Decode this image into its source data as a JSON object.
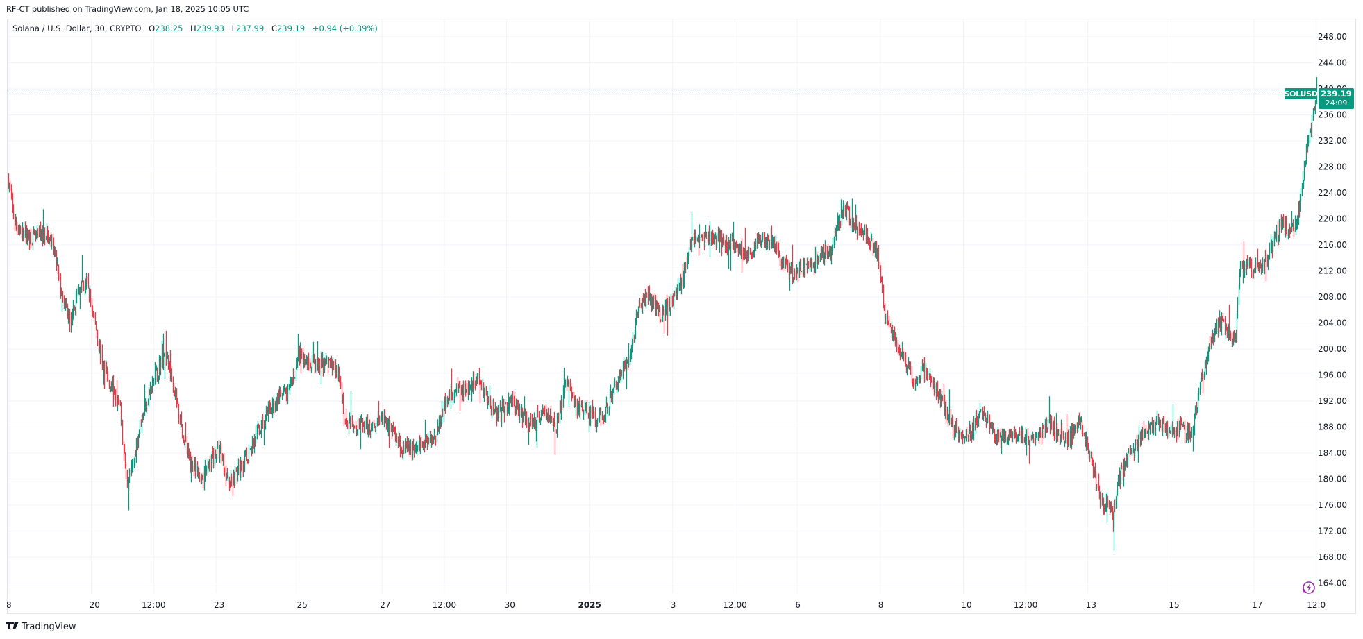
{
  "header": {
    "published": "RF-CT published on TradingView.com, Jan 18, 2025 10:05 UTC"
  },
  "legend": {
    "symbol_desc": "Solana / U.S. Dollar, 30, CRYPTO",
    "open_label": "O",
    "open": "238.25",
    "high_label": "H",
    "high": "239.93",
    "low_label": "L",
    "low": "237.99",
    "close_label": "C",
    "close": "239.19",
    "change": "+0.94 (+0.39%)"
  },
  "price_tag": {
    "symbol": "SOLUSD",
    "price": "239.19",
    "countdown": "24:09"
  },
  "footer": {
    "brand": "TradingView",
    "brand_mark": "TV"
  },
  "colors": {
    "up": "#089981",
    "down": "#f23645",
    "grid": "#f0f3fa",
    "border": "#e0e3eb",
    "accent_purple": "#9c27b0"
  },
  "chart_data": {
    "type": "candlestick",
    "title": "Solana / U.S. Dollar, 30, CRYPTO",
    "symbol": "SOLUSD",
    "interval": "30",
    "xlabel": "",
    "ylabel": "",
    "ylim": [
      161,
      250
    ],
    "y_ticks": [
      248,
      244,
      240,
      236,
      232,
      228,
      224,
      220,
      216,
      212,
      208,
      204,
      200,
      196,
      192,
      188,
      184,
      180,
      176,
      172,
      168,
      164
    ],
    "y_tick_labels": [
      "248.00",
      "244.00",
      "240.00",
      "236.00",
      "232.00",
      "228.00",
      "224.00",
      "220.00",
      "216.00",
      "212.00",
      "208.00",
      "204.00",
      "200.00",
      "196.00",
      "192.00",
      "188.00",
      "184.00",
      "180.00",
      "176.00",
      "172.00",
      "168.00",
      "164.00"
    ],
    "x_ticks": [
      {
        "label": "8",
        "day": 0
      },
      {
        "label": "20",
        "day": 2
      },
      {
        "label": "12:00",
        "day": 3.5
      },
      {
        "label": "23",
        "day": 5
      },
      {
        "label": "25",
        "day": 7
      },
      {
        "label": "27",
        "day": 9
      },
      {
        "label": "12:00",
        "day": 10.5
      },
      {
        "label": "30",
        "day": 12
      },
      {
        "label": "2025",
        "day": 14,
        "bold": true
      },
      {
        "label": "3",
        "day": 16
      },
      {
        "label": "12:00",
        "day": 17.5
      },
      {
        "label": "6",
        "day": 19
      },
      {
        "label": "8",
        "day": 21
      },
      {
        "label": "10",
        "day": 23
      },
      {
        "label": "12:00",
        "day": 24.5
      },
      {
        "label": "13",
        "day": 26
      },
      {
        "label": "15",
        "day": 28
      },
      {
        "label": "17",
        "day": 30
      },
      {
        "label": "12:0",
        "day": 31.5
      }
    ],
    "last": {
      "open": 238.25,
      "high": 239.93,
      "low": 237.99,
      "close": 239.19,
      "change": 0.94,
      "change_pct": 0.39
    },
    "price_path": [
      [
        0.0,
        226.0
      ],
      [
        0.15,
        219.5
      ],
      [
        0.3,
        218.0
      ],
      [
        0.6,
        217.0
      ],
      [
        0.9,
        218.0
      ],
      [
        1.1,
        215.0
      ],
      [
        1.3,
        207.5
      ],
      [
        1.5,
        204.0
      ],
      [
        1.7,
        209.5
      ],
      [
        1.9,
        210.0
      ],
      [
        2.05,
        205.0
      ],
      [
        2.25,
        198.0
      ],
      [
        2.4,
        195.0
      ],
      [
        2.55,
        194.0
      ],
      [
        2.7,
        190.0
      ],
      [
        2.85,
        179.0
      ],
      [
        3.0,
        182.0
      ],
      [
        3.15,
        188.0
      ],
      [
        3.35,
        192.5
      ],
      [
        3.55,
        196.0
      ],
      [
        3.75,
        199.5
      ],
      [
        3.95,
        195.5
      ],
      [
        4.1,
        190.0
      ],
      [
        4.3,
        184.0
      ],
      [
        4.5,
        181.0
      ],
      [
        4.7,
        180.0
      ],
      [
        4.9,
        183.5
      ],
      [
        5.1,
        184.5
      ],
      [
        5.3,
        179.5
      ],
      [
        5.5,
        181.0
      ],
      [
        5.75,
        183.5
      ],
      [
        6.0,
        187.0
      ],
      [
        6.25,
        190.0
      ],
      [
        6.5,
        192.5
      ],
      [
        6.75,
        193.0
      ],
      [
        7.0,
        199.0
      ],
      [
        7.2,
        198.0
      ],
      [
        7.45,
        197.5
      ],
      [
        7.7,
        198.0
      ],
      [
        7.95,
        196.0
      ],
      [
        8.1,
        189.0
      ],
      [
        8.4,
        188.5
      ],
      [
        8.7,
        188.0
      ],
      [
        9.0,
        189.5
      ],
      [
        9.2,
        188.0
      ],
      [
        9.45,
        185.0
      ],
      [
        9.7,
        184.5
      ],
      [
        10.0,
        185.5
      ],
      [
        10.3,
        187.0
      ],
      [
        10.55,
        192.5
      ],
      [
        10.8,
        193.5
      ],
      [
        11.05,
        194.0
      ],
      [
        11.3,
        195.5
      ],
      [
        11.6,
        191.5
      ],
      [
        11.85,
        190.0
      ],
      [
        12.1,
        192.5
      ],
      [
        12.35,
        190.0
      ],
      [
        12.55,
        188.5
      ],
      [
        12.8,
        190.0
      ],
      [
        13.0,
        190.5
      ],
      [
        13.2,
        188.0
      ],
      [
        13.45,
        195.5
      ],
      [
        13.65,
        191.0
      ],
      [
        13.9,
        190.5
      ],
      [
        14.1,
        189.0
      ],
      [
        14.35,
        190.0
      ],
      [
        14.6,
        194.5
      ],
      [
        14.8,
        197.0
      ],
      [
        15.0,
        200.0
      ],
      [
        15.2,
        207.0
      ],
      [
        15.45,
        207.5
      ],
      [
        15.7,
        205.5
      ],
      [
        15.95,
        207.0
      ],
      [
        16.2,
        210.0
      ],
      [
        16.45,
        217.0
      ],
      [
        16.7,
        217.0
      ],
      [
        16.95,
        217.5
      ],
      [
        17.2,
        216.5
      ],
      [
        17.5,
        216.0
      ],
      [
        17.8,
        214.5
      ],
      [
        18.1,
        216.5
      ],
      [
        18.35,
        217.5
      ],
      [
        18.6,
        213.5
      ],
      [
        18.85,
        211.5
      ],
      [
        19.1,
        212.5
      ],
      [
        19.35,
        212.5
      ],
      [
        19.55,
        214.5
      ],
      [
        19.8,
        215.0
      ],
      [
        20.0,
        219.5
      ],
      [
        20.15,
        221.5
      ],
      [
        20.35,
        219.0
      ],
      [
        20.55,
        218.0
      ],
      [
        20.8,
        216.0
      ],
      [
        20.95,
        214.0
      ],
      [
        21.1,
        205.0
      ],
      [
        21.3,
        202.0
      ],
      [
        21.55,
        199.0
      ],
      [
        21.8,
        194.5
      ],
      [
        22.0,
        197.0
      ],
      [
        22.25,
        195.0
      ],
      [
        22.45,
        192.0
      ],
      [
        22.7,
        189.0
      ],
      [
        22.95,
        186.0
      ],
      [
        23.2,
        187.5
      ],
      [
        23.4,
        190.5
      ],
      [
        23.6,
        188.5
      ],
      [
        23.8,
        186.0
      ],
      [
        24.05,
        186.5
      ],
      [
        24.3,
        186.0
      ],
      [
        24.55,
        186.5
      ],
      [
        24.8,
        187.0
      ],
      [
        25.05,
        188.5
      ],
      [
        25.3,
        187.0
      ],
      [
        25.55,
        186.0
      ],
      [
        25.8,
        189.5
      ],
      [
        25.95,
        186.0
      ],
      [
        26.15,
        180.5
      ],
      [
        26.35,
        176.0
      ],
      [
        26.5,
        176.5
      ],
      [
        26.6,
        174.5
      ],
      [
        26.75,
        180.0
      ],
      [
        26.95,
        183.0
      ],
      [
        27.2,
        186.0
      ],
      [
        27.45,
        188.0
      ],
      [
        27.7,
        188.5
      ],
      [
        27.95,
        187.0
      ],
      [
        28.2,
        188.0
      ],
      [
        28.35,
        187.0
      ],
      [
        28.5,
        187.0
      ],
      [
        28.65,
        193.0
      ],
      [
        28.85,
        198.5
      ],
      [
        29.05,
        203.0
      ],
      [
        29.2,
        204.0
      ],
      [
        29.4,
        202.5
      ],
      [
        29.55,
        201.0
      ],
      [
        29.65,
        212.0
      ],
      [
        29.8,
        213.0
      ],
      [
        30.0,
        212.5
      ],
      [
        30.2,
        213.0
      ],
      [
        30.45,
        216.0
      ],
      [
        30.65,
        219.5
      ],
      [
        30.85,
        218.0
      ],
      [
        31.0,
        219.0
      ],
      [
        31.15,
        225.0
      ],
      [
        31.3,
        232.0
      ],
      [
        31.45,
        236.5
      ],
      [
        31.52,
        239.19
      ]
    ]
  }
}
